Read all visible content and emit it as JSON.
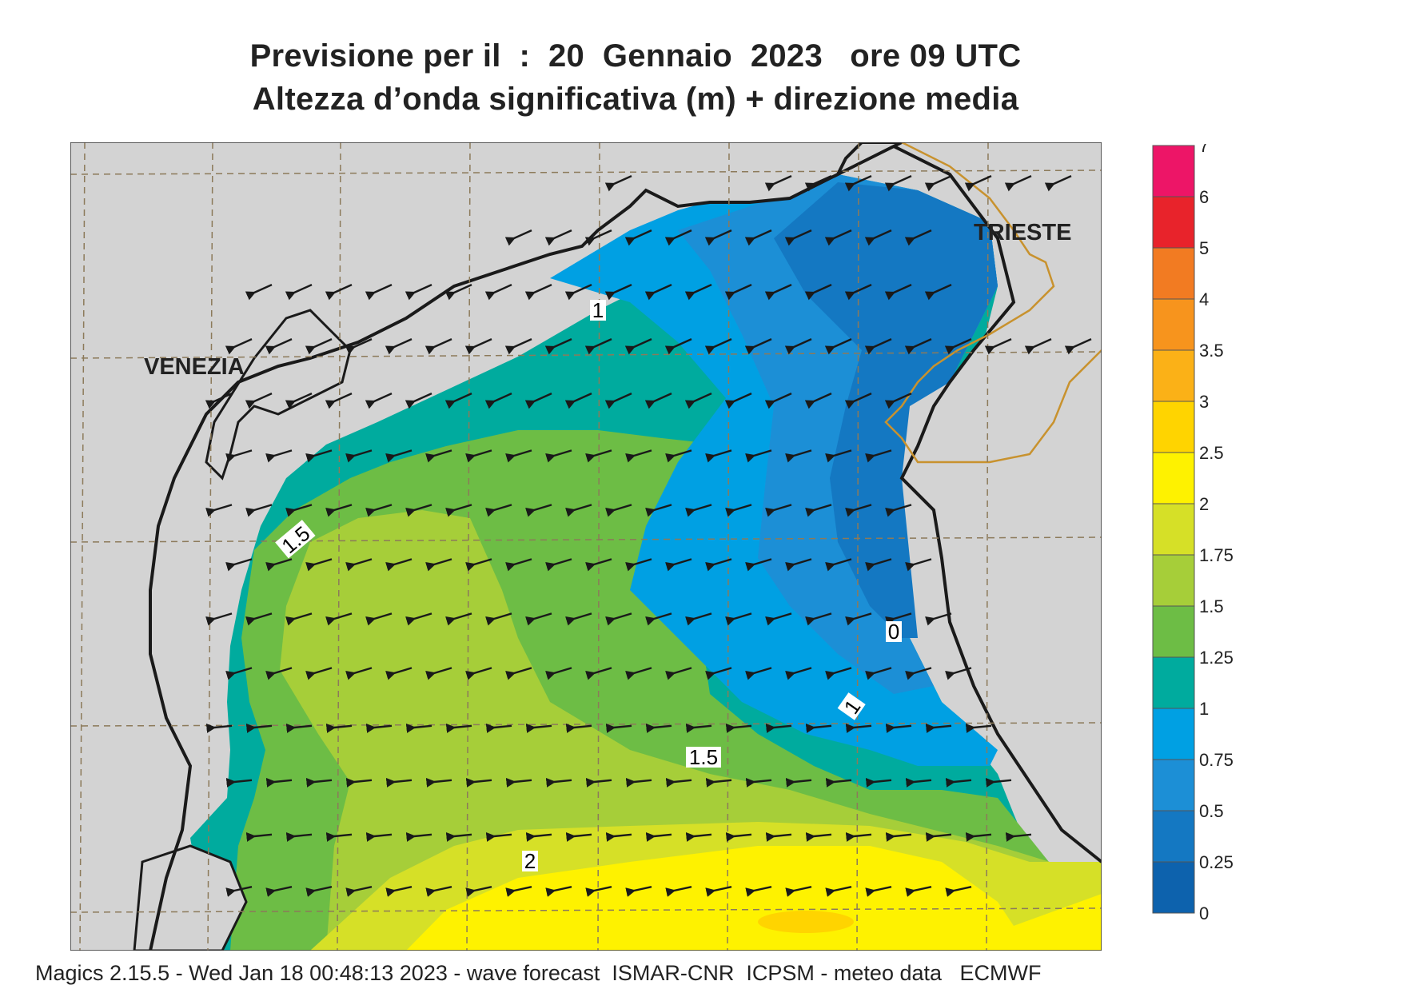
{
  "title": {
    "line1": "Previsione per il  :  20  Gennaio  2023   ore 09 UTC",
    "line2": "Altezza d’onda significativa (m) + direzione media"
  },
  "footer": "Magics 2.15.5 - Wed Jan 18 00:48:13 2023 - wave forecast  ISMAR-CNR  ICPSM - meteo data   ECMWF",
  "map": {
    "cities": [
      {
        "name": "VENEZIA"
      },
      {
        "name": "TRIESTE"
      }
    ],
    "contour_labels": [
      "1",
      "1.5",
      "0",
      "1",
      "1.5",
      "2"
    ],
    "land_color": "#d3d3d3",
    "coast_color": "#1a1a1a",
    "border_color": "#c8922e",
    "arrow_color": "#1a1a1a",
    "grid": true
  },
  "legend": {
    "ticks": [
      "7",
      "6",
      "5",
      "4",
      "3.5",
      "3",
      "2.5",
      "2",
      "1.75",
      "1.5",
      "1.25",
      "1",
      "0.75",
      "0.5",
      "0.25",
      "0"
    ],
    "colors": [
      "#ed1567",
      "#e8232b",
      "#f27b22",
      "#f7941d",
      "#fbb117",
      "#ffd400",
      "#fef200",
      "#d6e027",
      "#a6ce39",
      "#6dbd45",
      "#00ab9e",
      "#00a0e3",
      "#1c8fd6",
      "#1478c2",
      "#0d62ad"
    ]
  }
}
